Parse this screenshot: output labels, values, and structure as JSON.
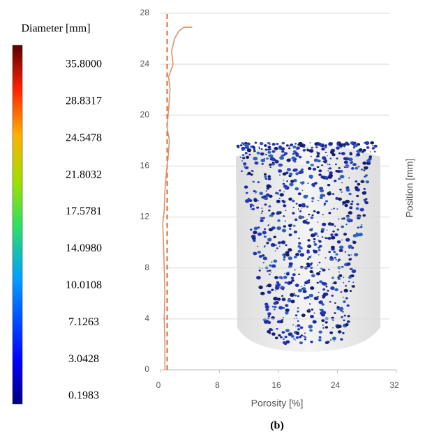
{
  "chart_data": {
    "type": "line",
    "x_label": "Porosity [%]",
    "y_label": "Position [mm]",
    "caption": "(b)",
    "x": [
      0.6,
      0.6,
      0.5,
      0.6,
      0.5,
      0.4,
      0.3,
      0.5,
      0.6,
      0.8,
      1.0,
      1.2,
      0.9,
      1.1,
      1.3,
      1.1,
      1.7,
      1.5,
      1.9,
      2.5,
      3.2,
      4.3
    ],
    "values": [
      0,
      2,
      4,
      6,
      8,
      10,
      11.5,
      12.5,
      14,
      15.5,
      16.5,
      18,
      19,
      20.5,
      22,
      23,
      24,
      25,
      26,
      26.6,
      26.9,
      26.9
    ],
    "color": "#e0916a",
    "vline": 0.9,
    "vline_color": "#d9683a",
    "xlim": [
      0,
      32
    ],
    "xticks": [
      0,
      8,
      16,
      24,
      32
    ],
    "ylim": [
      0,
      28
    ],
    "yticks": [
      0,
      4,
      8,
      12,
      16,
      20,
      24,
      28
    ],
    "grid": true,
    "colorbar": {
      "title": "Diameter [mm]",
      "labels": [
        "35.8000",
        "28.8317",
        "24.5478",
        "21.8032",
        "17.5781",
        "14.0980",
        "10.0108",
        "7.1263",
        "3.0428",
        "0.1983"
      ]
    }
  }
}
